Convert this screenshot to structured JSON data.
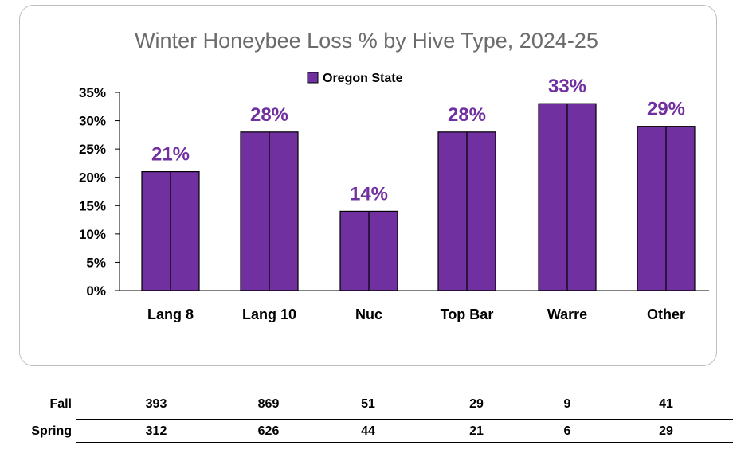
{
  "colors": {
    "bar": "#7030a0",
    "label": "#7030a0",
    "title": "#6b6b6b"
  },
  "chart_data": {
    "type": "bar",
    "title": "Winter Honeybee Loss % by Hive Type, 2024-25",
    "xlabel": "",
    "ylabel": "",
    "categories": [
      "Lang 8",
      "Lang 10",
      "Nuc",
      "Top Bar",
      "Warre",
      "Other"
    ],
    "series": [
      {
        "name": "Oregon State",
        "values": [
          21,
          28,
          14,
          28,
          33,
          29
        ]
      }
    ],
    "data_labels": [
      "21%",
      "28%",
      "14%",
      "28%",
      "33%",
      "29%"
    ],
    "ylim": [
      0,
      35
    ],
    "yticks": [
      0,
      5,
      10,
      15,
      20,
      25,
      30,
      35
    ],
    "ytick_labels": [
      "0%",
      "5%",
      "10%",
      "15%",
      "20%",
      "25%",
      "30%",
      "35%"
    ],
    "legend_position": "top-center",
    "grid": false
  },
  "table": {
    "rows": [
      {
        "label": "Fall",
        "values": [
          "393",
          "869",
          "51",
          "29",
          "9",
          "41"
        ]
      },
      {
        "label": "Spring",
        "values": [
          "312",
          "626",
          "44",
          "21",
          "6",
          "29"
        ]
      }
    ]
  }
}
